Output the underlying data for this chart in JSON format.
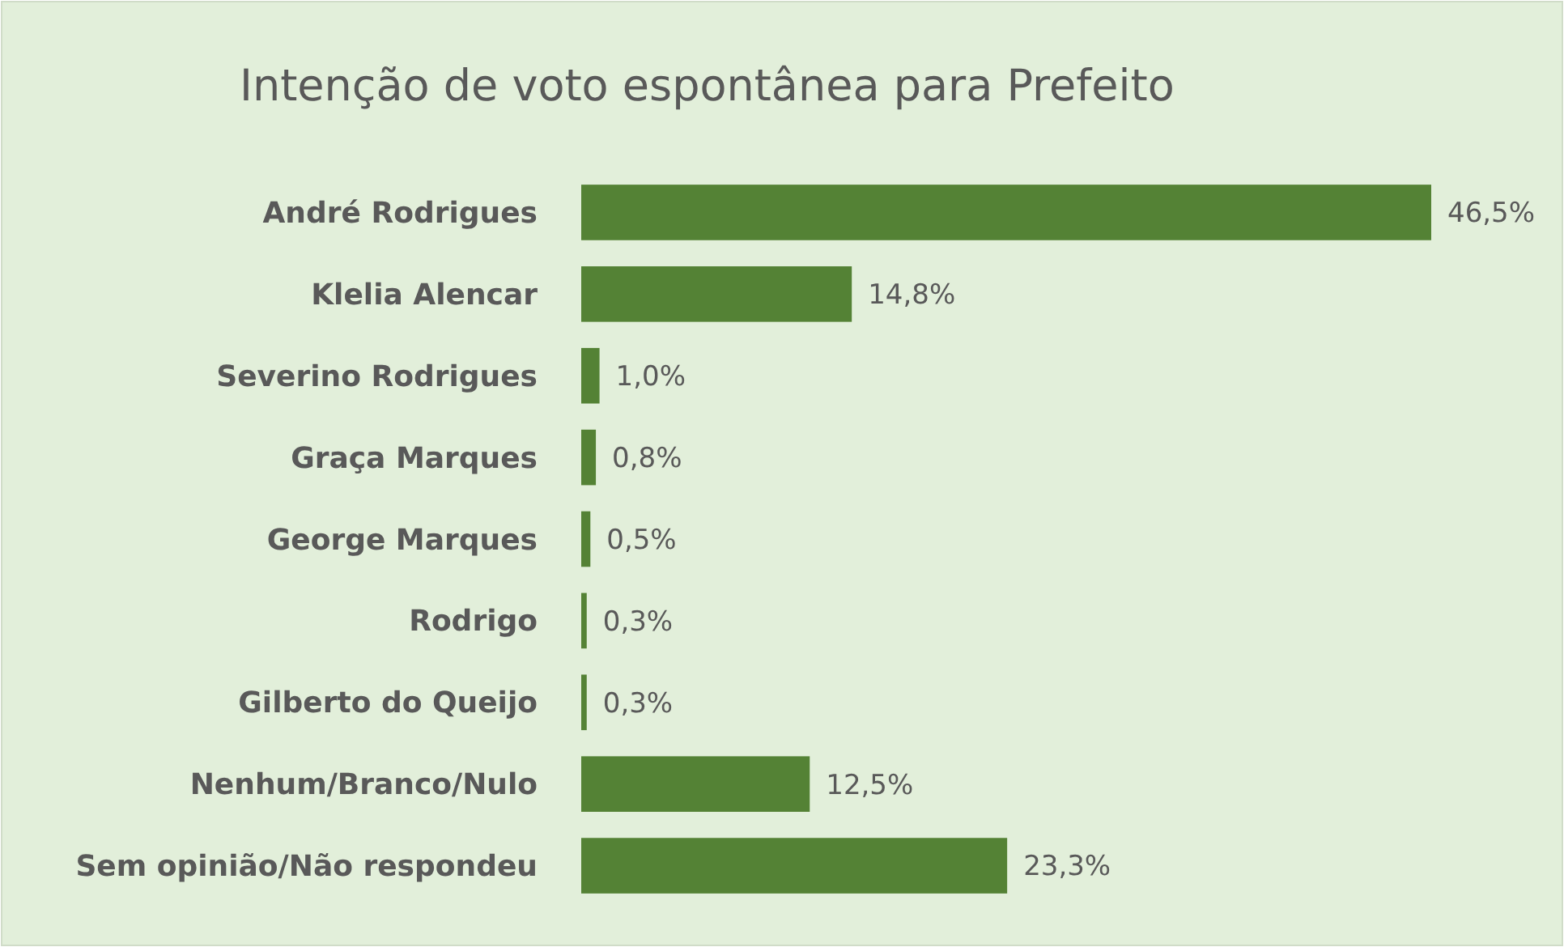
{
  "chart_data": {
    "type": "bar",
    "orientation": "horizontal",
    "title": "Intenção de voto espontânea para Prefeito",
    "categories": [
      "André Rodrigues",
      "Klelia Alencar",
      "Severino Rodrigues",
      "Graça Marques",
      "George Marques",
      "Rodrigo",
      "Gilberto do Queijo",
      "Nenhum/Branco/Nulo",
      "Sem opinião/Não respondeu"
    ],
    "values": [
      46.5,
      14.8,
      1.0,
      0.8,
      0.5,
      0.3,
      0.3,
      12.5,
      23.3
    ],
    "value_labels": [
      "46,5%",
      "14,8%",
      "1,0%",
      "0,8%",
      "0,5%",
      "0,3%",
      "0,3%",
      "12,5%",
      "23,3%"
    ],
    "color": "#548235"
  }
}
